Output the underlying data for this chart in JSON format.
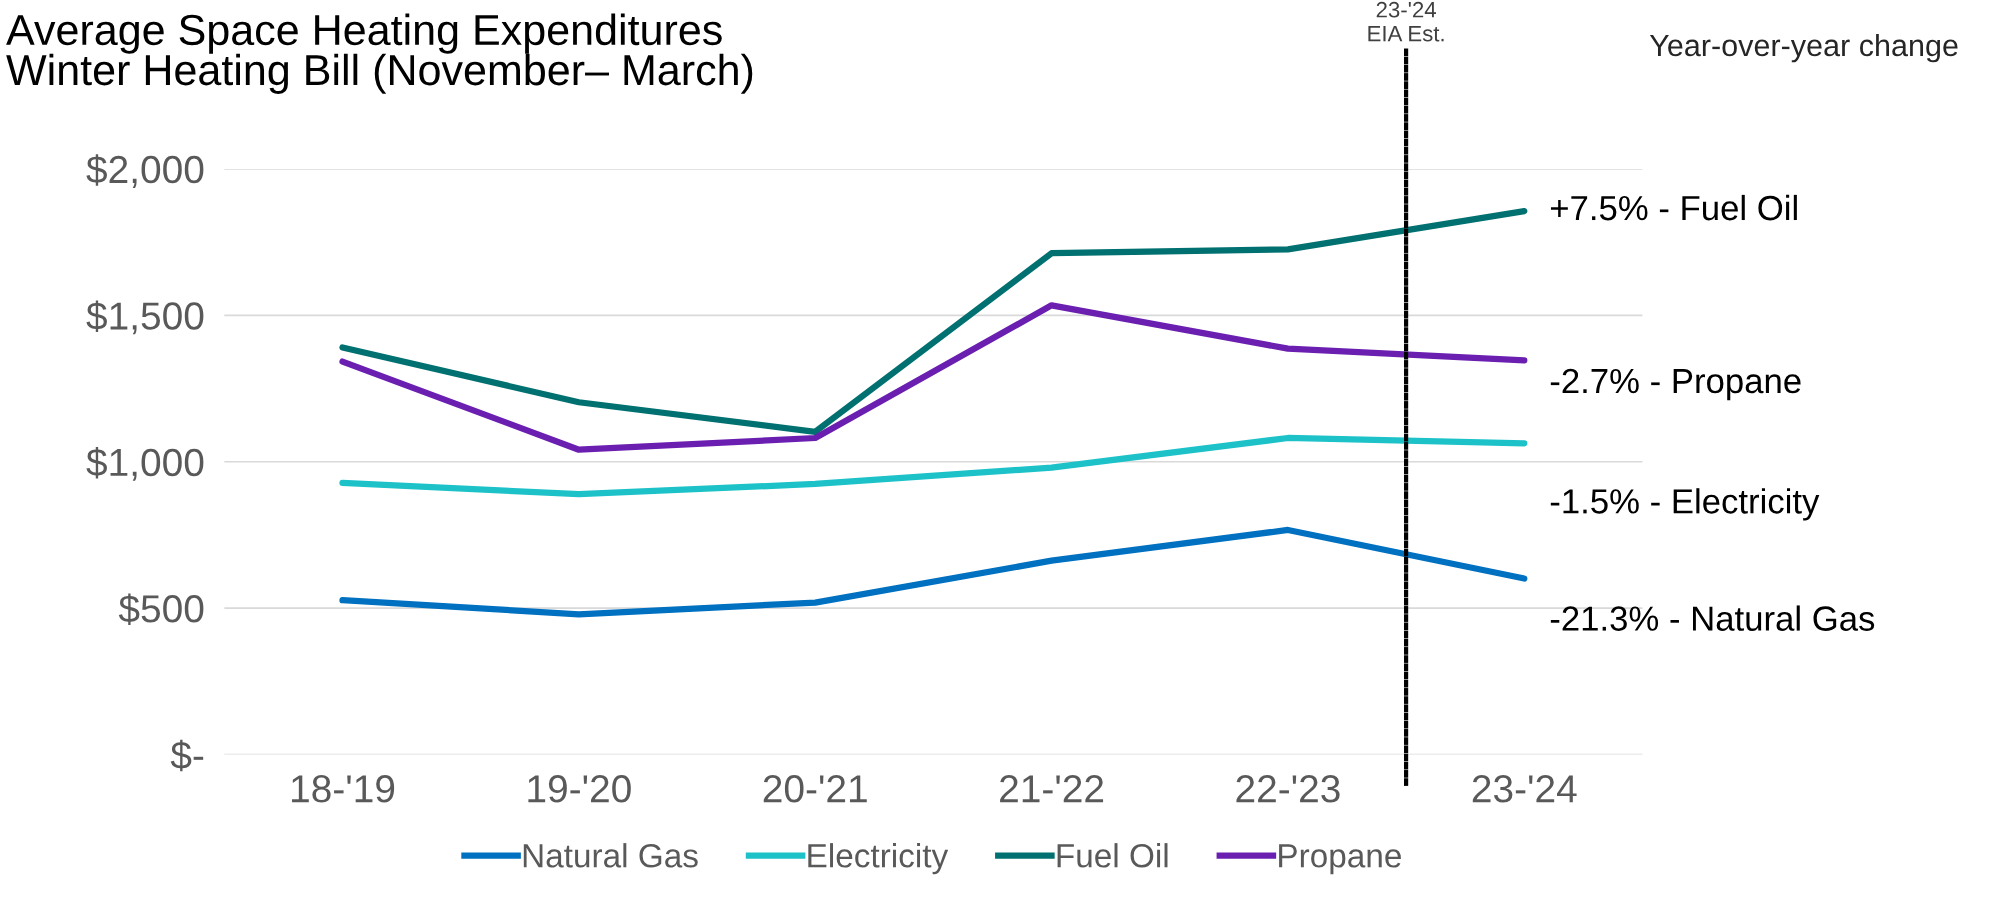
{
  "chart_data": {
    "type": "line",
    "title": "Average Space Heating Expenditures\nWinter Heating Bill (November– March)",
    "categories": [
      "18-'19",
      "19-'20",
      "20-'21",
      "21-'22",
      "22-'23",
      "23-'24"
    ],
    "series": [
      {
        "name": "Natural Gas",
        "color": "#0070c0",
        "values": [
          527,
          479,
          519,
          662,
          767,
          601
        ]
      },
      {
        "name": "Electricity",
        "color": "#1cc2c8",
        "values": [
          928,
          889,
          924,
          980,
          1081,
          1063
        ]
      },
      {
        "name": "Fuel Oil",
        "color": "#007070",
        "values": [
          1390,
          1203,
          1102,
          1712,
          1725,
          1856
        ]
      },
      {
        "name": "Propane",
        "color": "#6a1fb0",
        "values": [
          1342,
          1041,
          1081,
          1534,
          1386,
          1346
        ]
      }
    ],
    "ylim": [
      0,
      2000
    ],
    "yticks": [
      {
        "value": 0,
        "label": "$-"
      },
      {
        "value": 500,
        "label": "$500"
      },
      {
        "value": 1000,
        "label": "$1,000"
      },
      {
        "value": 1500,
        "label": "$1,500"
      },
      {
        "value": 2000,
        "label": "$2,000"
      }
    ],
    "grid": "y",
    "legend": "bottom",
    "marker": "none",
    "line_style": "solid",
    "annotations": [
      {
        "text": "+7.5% - Fuel Oil",
        "x": "23-'24",
        "y": 1856
      },
      {
        "text": "-2.7% - Propane",
        "x": "23-'24",
        "y": 1346
      },
      {
        "text": "-1.5% - Electricity",
        "x": "23-'24",
        "y": 1063
      },
      {
        "text": "-21.3% - Natural Gas",
        "x": "23-'24",
        "y": 601
      },
      "Year-over-year change",
      "23-'24\nEIA Est."
    ]
  }
}
